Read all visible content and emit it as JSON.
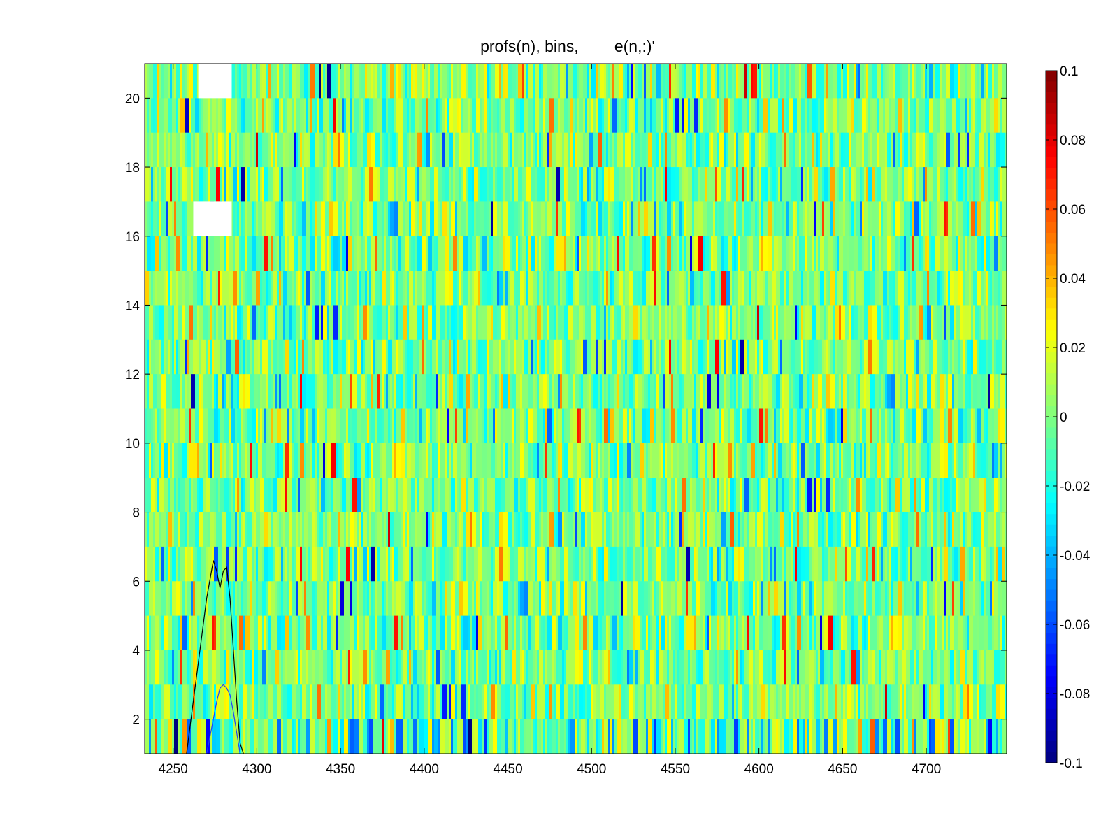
{
  "chart_data": {
    "type": "heatmap",
    "title": "profs(n), bins,        e(n,:)'",
    "xlabel": "",
    "ylabel": "",
    "xlim": [
      4233,
      4748
    ],
    "ylim": [
      1,
      21
    ],
    "xticks": [
      4250,
      4300,
      4350,
      4400,
      4450,
      4500,
      4550,
      4600,
      4650,
      4700
    ],
    "yticks": [
      2,
      4,
      6,
      8,
      10,
      12,
      14,
      16,
      18,
      20
    ],
    "colormap": "jet",
    "clim": [
      -0.1,
      0.1
    ],
    "colorbar_ticks": [
      -0.1,
      -0.08,
      -0.06,
      -0.04,
      -0.02,
      0,
      0.02,
      0.04,
      0.06,
      0.08,
      0.1
    ],
    "rows": 20,
    "value_distribution": "noise centred near 0, mostly within ±0.03",
    "missing_regions": [
      {
        "x": [
          4265,
          4285
        ],
        "y": [
          20,
          21
        ]
      },
      {
        "x": [
          4262,
          4285
        ],
        "y": [
          16,
          17
        ]
      }
    ],
    "overlay_lines": [
      {
        "color": "#000000",
        "points": [
          [
            4258,
            1
          ],
          [
            4262,
            2.5
          ],
          [
            4266,
            4
          ],
          [
            4270,
            5.5
          ],
          [
            4274,
            6.6
          ],
          [
            4276,
            6.3
          ],
          [
            4278,
            5.8
          ],
          [
            4280,
            6.3
          ],
          [
            4282,
            6.4
          ],
          [
            4284,
            5.5
          ],
          [
            4286,
            4
          ],
          [
            4288,
            2.5
          ],
          [
            4290,
            1.3
          ],
          [
            4292,
            1
          ]
        ]
      },
      {
        "color": "#1f3fff",
        "points": [
          [
            4270,
            1
          ],
          [
            4272,
            1.5
          ],
          [
            4274,
            2
          ],
          [
            4276,
            2.5
          ],
          [
            4278,
            2.9
          ],
          [
            4280,
            3
          ],
          [
            4282,
            2.9
          ],
          [
            4284,
            2.7
          ],
          [
            4286,
            2.2
          ],
          [
            4288,
            1.6
          ],
          [
            4290,
            1
          ]
        ]
      }
    ],
    "colors": {
      "background": "#ffffff",
      "axes": "#000000",
      "overlay_black": "#000000",
      "overlay_blue": "#1f3fff"
    }
  }
}
